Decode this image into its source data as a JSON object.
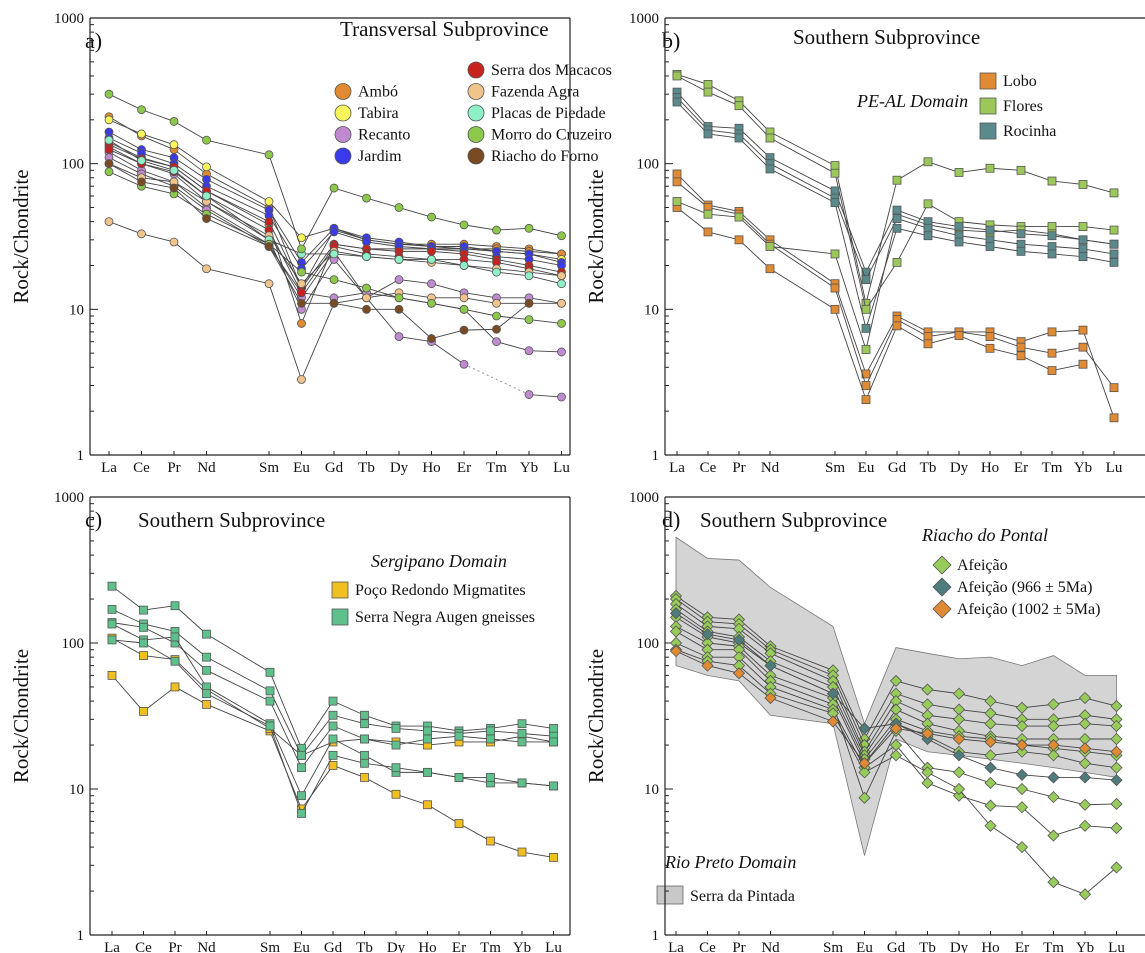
{
  "figure": {
    "panels": [
      {
        "id": "a",
        "letter": "a)",
        "title": "Transversal Subprovince",
        "subtitle": "",
        "ylabel": "Rock/Chondrite",
        "legend": [
          {
            "label": "Ambó",
            "color": "#e08a34",
            "shape": "circle"
          },
          {
            "label": "Tabira",
            "color": "#f8f55c",
            "shape": "circle"
          },
          {
            "label": "Recanto",
            "color": "#c08ad0",
            "shape": "circle"
          },
          {
            "label": "Jardim",
            "color": "#3a3ae8",
            "shape": "circle"
          },
          {
            "label": "Serra dos Macacos",
            "color": "#c8221e",
            "shape": "circle"
          },
          {
            "label": "Fazenda Agra",
            "color": "#f0c48a",
            "shape": "circle"
          },
          {
            "label": "Placas de Piedade",
            "color": "#8ff0c8",
            "shape": "circle"
          },
          {
            "label": "Morro do Cruzeiro",
            "color": "#8cc84a",
            "shape": "circle"
          },
          {
            "label": "Riacho do Forno",
            "color": "#7a4a22",
            "shape": "circle"
          }
        ]
      },
      {
        "id": "b",
        "letter": "b)",
        "title": "Southern Subprovince",
        "subtitle": "PE-AL Domain",
        "ylabel": "Rock/Chondrite",
        "legend": [
          {
            "label": "Lobo",
            "color": "#e08a34",
            "shape": "square"
          },
          {
            "label": "Flores",
            "color": "#9cc85a",
            "shape": "square"
          },
          {
            "label": "Rocinha",
            "color": "#5a8a8c",
            "shape": "square"
          }
        ]
      },
      {
        "id": "c",
        "letter": "c)",
        "title": "Southern Subprovince",
        "subtitle": "Sergipano Domain",
        "ylabel": "Rock/Chondrite",
        "legend": [
          {
            "label": "Poço Redondo Migmatites",
            "color": "#f0c020",
            "shape": "square"
          },
          {
            "label": "Serra Negra Augen gneisses",
            "color": "#5ec08a",
            "shape": "square"
          }
        ]
      },
      {
        "id": "d",
        "letter": "d)",
        "title": "Southern Subprovince",
        "subtitle": "Riacho do Pontal",
        "subtitle2": "Rio Preto Domain",
        "ylabel": "Rock/Chondrite",
        "legend": [
          {
            "label": "Afeição",
            "color": "#98cc5a",
            "shape": "diamond"
          },
          {
            "label": "Afeição (966 ± 5Ma)",
            "color": "#4e7c7c",
            "shape": "diamond"
          },
          {
            "label": "Afeição (1002 ± 5Ma)",
            "color": "#e08a34",
            "shape": "diamond"
          }
        ],
        "field_legend": {
          "label": "Serra da Pintada",
          "color": "#c8c8c8"
        }
      }
    ]
  },
  "chart_data": [
    {
      "type": "line",
      "panel": "a",
      "title": "Transversal Subprovince",
      "ylabel": "Rock/Chondrite",
      "yscale": "log",
      "ylim": [
        1,
        1000
      ],
      "x": [
        "La",
        "Ce",
        "Pr",
        "Nd",
        "Sm",
        "Eu",
        "Gd",
        "Tb",
        "Dy",
        "Ho",
        "Er",
        "Tm",
        "Yb",
        "Lu"
      ],
      "series": [
        {
          "name": "Ambó",
          "values": [
            210,
            155,
            125,
            85,
            50,
            14,
            35,
            30,
            28,
            28,
            28,
            27,
            26,
            24
          ]
        },
        {
          "name": "Ambó",
          "values": [
            140,
            110,
            95,
            65,
            38,
            8,
            28,
            26,
            26,
            26,
            26,
            26,
            25,
            24
          ]
        },
        {
          "name": "Tabira",
          "values": [
            200,
            160,
            135,
            95,
            55,
            31,
            36,
            30,
            28,
            27,
            26,
            25,
            24,
            22
          ]
        },
        {
          "name": "Recanto",
          "values": [
            130,
            100,
            85,
            55,
            30,
            10,
            22,
            12,
            6.5,
            6,
            4.2,
            null,
            2.6,
            2.5
          ]
        },
        {
          "name": "Recanto",
          "values": [
            120,
            90,
            75,
            50,
            28,
            12,
            25,
            12,
            16,
            15,
            13,
            12,
            12,
            11
          ]
        },
        {
          "name": "Recanto",
          "values": [
            110,
            85,
            70,
            48,
            27,
            13,
            12,
            13,
            12,
            11,
            10,
            6,
            5.2,
            5.1
          ]
        },
        {
          "name": "Jardim",
          "values": [
            165,
            125,
            110,
            78,
            48,
            21,
            36,
            31,
            29,
            27,
            27,
            25,
            24,
            21
          ]
        },
        {
          "name": "Jardim",
          "values": [
            150,
            118,
            100,
            70,
            44,
            19,
            34,
            29,
            27,
            26,
            25,
            23,
            22,
            20
          ]
        },
        {
          "name": "Serra dos Macacos",
          "values": [
            135,
            108,
            95,
            65,
            40,
            14,
            28,
            26,
            25,
            25,
            24,
            22,
            20,
            18
          ]
        },
        {
          "name": "Serra dos Macacos",
          "values": [
            125,
            100,
            88,
            60,
            35,
            13,
            27,
            24,
            23,
            22,
            22,
            21,
            19,
            17
          ]
        },
        {
          "name": "Fazenda Agra",
          "values": [
            40,
            33,
            29,
            19,
            15,
            3.3,
            11,
            12,
            13,
            12,
            12,
            11,
            11,
            11
          ]
        },
        {
          "name": "Fazenda Agra",
          "values": [
            100,
            80,
            75,
            55,
            32,
            15,
            25,
            23,
            22,
            21,
            20,
            19,
            18,
            17
          ]
        },
        {
          "name": "Placas de Piedade",
          "values": [
            145,
            105,
            90,
            60,
            30,
            24,
            24,
            23,
            22,
            22,
            20,
            18,
            17,
            15
          ]
        },
        {
          "name": "Morro do Cruzeiro",
          "values": [
            300,
            235,
            195,
            145,
            115,
            26,
            68,
            58,
            50,
            43,
            38,
            35,
            36,
            32
          ]
        },
        {
          "name": "Morro do Cruzeiro",
          "values": [
            88,
            70,
            62,
            45,
            28,
            18,
            16,
            14,
            12,
            11,
            10,
            9,
            8.5,
            8
          ]
        },
        {
          "name": "Riacho do Forno",
          "values": [
            100,
            75,
            68,
            42,
            27,
            11,
            11,
            10,
            10,
            6.3,
            7.2,
            7.3,
            11,
            null
          ]
        }
      ]
    },
    {
      "type": "line",
      "panel": "b",
      "title": "Southern Subprovince",
      "ylabel": "Rock/Chondrite",
      "yscale": "log",
      "ylim": [
        1,
        1000
      ],
      "x": [
        "La",
        "Ce",
        "Pr",
        "Nd",
        "Sm",
        "Eu",
        "Gd",
        "Tb",
        "Dy",
        "Ho",
        "Er",
        "Tm",
        "Yb",
        "Lu"
      ],
      "series": [
        {
          "name": "Lobo",
          "values": [
            85,
            52,
            47,
            30,
            15,
            3.6,
            9,
            7,
            7,
            7,
            6,
            7,
            7.2,
            1.8
          ]
        },
        {
          "name": "Lobo",
          "values": [
            75,
            50,
            45,
            28,
            14,
            3,
            8.5,
            6.5,
            7,
            6.5,
            5.5,
            5,
            5.5,
            2.9
          ]
        },
        {
          "name": "Lobo",
          "values": [
            50,
            34,
            30,
            19,
            10,
            2.4,
            7.7,
            5.8,
            6.6,
            5.4,
            4.8,
            3.8,
            4.2,
            null
          ]
        },
        {
          "name": "Flores",
          "values": [
            410,
            350,
            270,
            165,
            97,
            11,
            77,
            103,
            87,
            93,
            90,
            76,
            72,
            63
          ]
        },
        {
          "name": "Flores",
          "values": [
            400,
            310,
            250,
            150,
            86,
            10,
            21,
            53,
            40,
            38,
            37,
            37,
            37,
            35
          ]
        },
        {
          "name": "Flores",
          "values": [
            55,
            45,
            43,
            27,
            24,
            5.3,
            45,
            38,
            35,
            34,
            35,
            33,
            30,
            28
          ]
        },
        {
          "name": "Rocinha",
          "values": [
            310,
            180,
            175,
            110,
            65,
            18,
            48,
            40,
            37,
            35,
            33,
            32,
            30,
            28
          ]
        },
        {
          "name": "Rocinha",
          "values": [
            285,
            170,
            160,
            100,
            58,
            16,
            42,
            36,
            32,
            30,
            28,
            27,
            26,
            24
          ]
        },
        {
          "name": "Rocinha",
          "values": [
            265,
            160,
            150,
            92,
            54,
            7.4,
            36,
            32,
            29,
            27,
            25,
            24,
            23,
            21
          ]
        }
      ]
    },
    {
      "type": "line",
      "panel": "c",
      "title": "Southern Subprovince",
      "ylabel": "Rock/Chondrite",
      "yscale": "log",
      "ylim": [
        1,
        1000
      ],
      "x": [
        "La",
        "Ce",
        "Pr",
        "Nd",
        "Sm",
        "Eu",
        "Gd",
        "Tb",
        "Dy",
        "Ho",
        "Er",
        "Tm",
        "Yb",
        "Lu"
      ],
      "series": [
        {
          "name": "Poço Redondo Migmatites",
          "values": [
            60,
            34,
            50,
            38,
            25,
            7.3,
            14.5,
            12,
            9.2,
            7.8,
            5.8,
            4.4,
            3.7,
            3.4
          ]
        },
        {
          "name": "Poço Redondo Migmatites",
          "values": [
            108,
            82,
            77,
            48,
            26,
            17,
            21,
            22,
            21,
            20,
            21,
            21,
            23,
            21
          ]
        },
        {
          "name": "Serra Negra Augen gneisses",
          "values": [
            245,
            168,
            180,
            115,
            63,
            19,
            40,
            32,
            27,
            27,
            25,
            26,
            28,
            26
          ]
        },
        {
          "name": "Serra Negra Augen gneisses",
          "values": [
            170,
            135,
            120,
            80,
            47,
            17,
            32,
            28,
            26,
            25,
            24,
            25,
            24,
            23
          ]
        },
        {
          "name": "Serra Negra Augen gneisses",
          "values": [
            138,
            128,
            100,
            65,
            40,
            14,
            27,
            22,
            20,
            22,
            23,
            22,
            21,
            21
          ]
        },
        {
          "name": "Serra Negra Augen gneisses",
          "values": [
            135,
            105,
            110,
            50,
            28,
            9,
            22,
            17,
            13,
            13,
            12,
            11,
            11,
            10.5
          ]
        },
        {
          "name": "Serra Negra Augen gneisses",
          "values": [
            105,
            100,
            75,
            45,
            27,
            6.8,
            17,
            15,
            14,
            13,
            12,
            12,
            11,
            10.5
          ]
        }
      ]
    },
    {
      "type": "line",
      "panel": "d",
      "title": "Southern Subprovince",
      "ylabel": "Rock/Chondrite",
      "yscale": "log",
      "ylim": [
        1,
        1000
      ],
      "x": [
        "La",
        "Ce",
        "Pr",
        "Nd",
        "Sm",
        "Eu",
        "Gd",
        "Tb",
        "Dy",
        "Ho",
        "Er",
        "Tm",
        "Yb",
        "Lu"
      ],
      "field": {
        "name": "Serra da Pintada",
        "upper": [
          530,
          380,
          370,
          240,
          130,
          28,
          93,
          85,
          78,
          80,
          70,
          82,
          60,
          60
        ],
        "lower": [
          70,
          60,
          55,
          32,
          28,
          3.5,
          22,
          18,
          17,
          16,
          15,
          14,
          13,
          12
        ]
      },
      "series": [
        {
          "name": "Afeição",
          "values": [
            210,
            150,
            145,
            95,
            65,
            22,
            55,
            48,
            45,
            40,
            36,
            38,
            42,
            37
          ]
        },
        {
          "name": "Afeição",
          "values": [
            200,
            140,
            135,
            90,
            60,
            20,
            45,
            38,
            35,
            33,
            30,
            30,
            32,
            30
          ]
        },
        {
          "name": "Afeição",
          "values": [
            185,
            130,
            125,
            85,
            55,
            18,
            40,
            32,
            30,
            28,
            27,
            27,
            28,
            27
          ]
        },
        {
          "name": "Afeição",
          "values": [
            170,
            120,
            110,
            75,
            50,
            17,
            35,
            28,
            25,
            23,
            22,
            22,
            22,
            22
          ]
        },
        {
          "name": "Afeição",
          "values": [
            150,
            110,
            100,
            70,
            45,
            16,
            30,
            25,
            23,
            22,
            20,
            19,
            18,
            17
          ]
        },
        {
          "name": "Afeição",
          "values": [
            130,
            100,
            95,
            60,
            42,
            15,
            28,
            23,
            18,
            17,
            18,
            17,
            15,
            14
          ]
        },
        {
          "name": "Afeição",
          "values": [
            120,
            90,
            90,
            55,
            38,
            8.7,
            25,
            14,
            13,
            11,
            10,
            8.8,
            7.8,
            7.9
          ]
        },
        {
          "name": "Afeição",
          "values": [
            100,
            80,
            80,
            50,
            35,
            14,
            20,
            11,
            9,
            7.7,
            7.5,
            4.8,
            5.6,
            5.4
          ]
        },
        {
          "name": "Afeição",
          "values": [
            90,
            75,
            70,
            45,
            33,
            13,
            17,
            13,
            10,
            5.6,
            4,
            2.3,
            1.9,
            2.9
          ]
        },
        {
          "name": "Afeição (966 ± 5Ma)",
          "values": [
            160,
            115,
            105,
            70,
            45,
            26,
            28,
            22,
            17,
            14,
            12.5,
            12,
            12,
            11.5
          ]
        },
        {
          "name": "Afeição (1002 ± 5Ma)",
          "values": [
            88,
            70,
            62,
            42,
            29,
            15,
            26,
            24,
            22,
            21,
            20,
            20,
            19,
            18
          ]
        }
      ]
    }
  ]
}
